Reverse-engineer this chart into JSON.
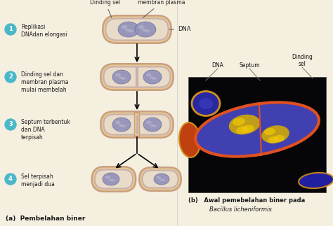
{
  "bg_color": "#f5efe0",
  "panel_a_label": "(a)  Pembelahan biner",
  "panel_b_label": "(b)   Awal pemebelahan biner pada",
  "panel_b_italic": "Bacillus licheniformis",
  "steps": [
    {
      "num": "1",
      "text": "Replikasi\nDNAdan elongasi"
    },
    {
      "num": "2",
      "text": "Dinding sel dan\nmembran plasma\nmulai membelah"
    },
    {
      "num": "3",
      "text": "Septum terbentuk\ndan DNA\nterpisah"
    },
    {
      "num": "4",
      "text": "Sel terpisah\nmenjadi dua"
    }
  ],
  "circle_color": "#4ab8c8",
  "cell_outer_color": "#c8a080",
  "cell_mid_color": "#e8c890",
  "cell_inner_color": "#e8dcc8",
  "cell_membrane_color": "#c8b0b0",
  "dna_color": "#9090b8",
  "dna_edge_color": "#6868a0",
  "dna_light_color": "#b8b8d0"
}
